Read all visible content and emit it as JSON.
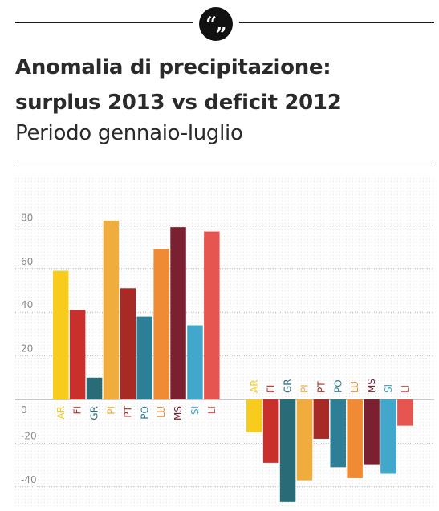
{
  "header": {
    "quote_icon": "“„"
  },
  "title_line1": "Anomalia di precipitazione:",
  "title_line2": "surplus 2013 vs deficit 2012",
  "subtitle": "Periodo gennaio-luglio",
  "colors": {
    "AR": "#f8cc1c",
    "FI": "#c9302c",
    "GR": "#2a6b78",
    "PI": "#f0ad3e",
    "PT": "#a72a26",
    "PO": "#2d7f96",
    "LU": "#f08b35",
    "MS": "#7b2030",
    "SI": "#41a8cc",
    "LI": "#e6554f",
    "grid": "#b9b9b9",
    "tick": "#8a8a8a"
  },
  "chart_data": {
    "type": "bar",
    "categories": [
      "AR",
      "FI",
      "GR",
      "PI",
      "PT",
      "PO",
      "LU",
      "MS",
      "SI",
      "LI"
    ],
    "series": [
      {
        "values": [
          59,
          41,
          10,
          82,
          51,
          38,
          69,
          79,
          34,
          77
        ]
      },
      {
        "values": [
          -15,
          -29,
          -47,
          -37,
          -18,
          -31,
          -36,
          -30,
          -34,
          -12
        ]
      }
    ],
    "yticks": [
      -40,
      -20,
      0,
      20,
      40,
      60,
      80
    ],
    "ylim": [
      -48,
      100
    ],
    "grid": true
  }
}
